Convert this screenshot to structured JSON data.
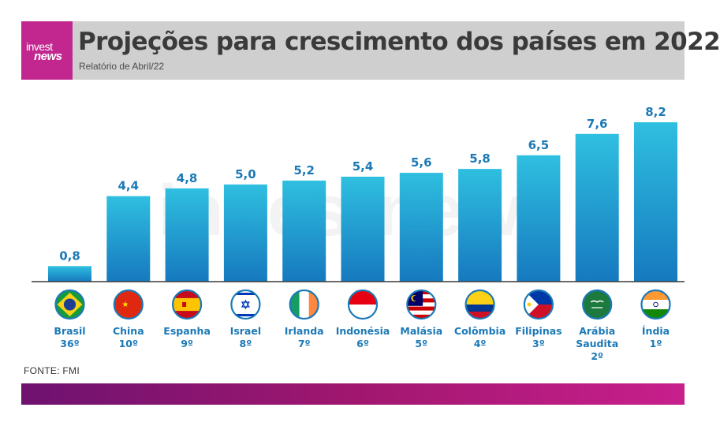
{
  "header": {
    "logo_line1": "invest",
    "logo_line2": "news",
    "title": "Projeções para crescimento dos países em 2022",
    "subtitle": "Relatório de Abril/22"
  },
  "watermark": "investnews",
  "source": "FONTE: FMI",
  "colors": {
    "bar_top": "#2fbfe0",
    "bar_bottom": "#1679bf",
    "value_label": "#1b79b6",
    "category_label": "#1b79b6",
    "header_bg": "#cfcfcf",
    "logo_bg": "#c2278f",
    "footer_start": "#6e1270",
    "footer_end": "#c81f8c"
  },
  "chart_data": {
    "type": "bar",
    "title": "Projeções para crescimento dos países em 2022",
    "subtitle": "Relatório de Abril/22",
    "categories": [
      "Brasil",
      "China",
      "Espanha",
      "Israel",
      "Irlanda",
      "Indonésia",
      "Malásia",
      "Colômbia",
      "Filipinas",
      "Arábia Saudita",
      "Índia"
    ],
    "category_lines": [
      [
        "Brasil",
        "36º"
      ],
      [
        "China",
        "10º"
      ],
      [
        "Espanha",
        "9º"
      ],
      [
        "Israel",
        "8º"
      ],
      [
        "Irlanda",
        "7º"
      ],
      [
        "Indonésia",
        "6º"
      ],
      [
        "Malásia",
        "5º"
      ],
      [
        "Colômbia",
        "4º"
      ],
      [
        "Filipinas",
        "3º"
      ],
      [
        "Arábia",
        "Saudita",
        "2º"
      ],
      [
        "Índia",
        "1º"
      ]
    ],
    "flags": [
      "brazil-flag",
      "china-flag",
      "spain-flag",
      "israel-flag",
      "ireland-flag",
      "indonesia-flag",
      "malaysia-flag",
      "colombia-flag",
      "philippines-flag",
      "saudi-arabia-flag",
      "india-flag"
    ],
    "values": [
      0.8,
      4.4,
      4.8,
      5.0,
      5.2,
      5.4,
      5.6,
      5.8,
      6.5,
      7.6,
      8.2
    ],
    "value_labels": [
      "0,8",
      "4,4",
      "4,8",
      "5,0",
      "5,2",
      "5,4",
      "5,6",
      "5,8",
      "6,5",
      "7,6",
      "8,2"
    ],
    "ylim": [
      0,
      8.2
    ],
    "grid": false,
    "legend": "none"
  }
}
